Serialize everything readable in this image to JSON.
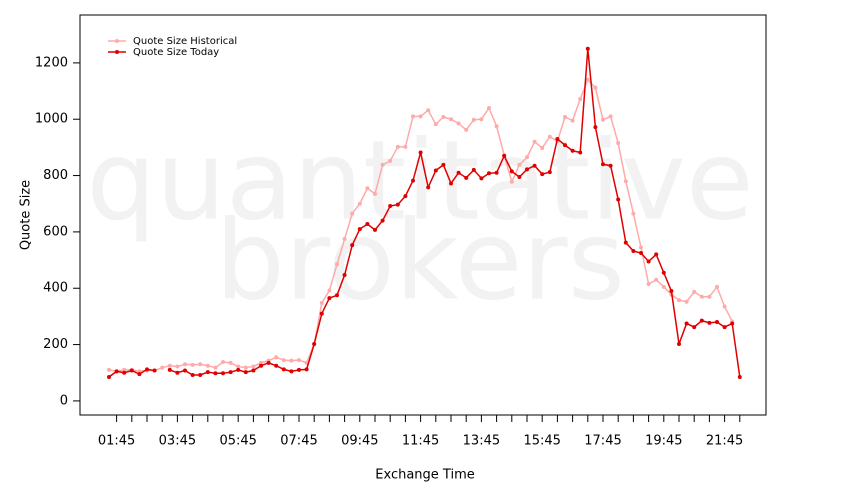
{
  "chart_data": {
    "type": "line",
    "watermark": [
      "quantitative",
      "brokers"
    ],
    "x_label": "Exchange Time",
    "y_label": "Quote Size",
    "categories": [
      null,
      "01:45",
      null,
      null,
      null,
      null,
      null,
      null,
      null,
      "03:45",
      null,
      null,
      null,
      null,
      null,
      null,
      null,
      "05:45",
      null,
      null,
      null,
      null,
      null,
      null,
      null,
      "07:45",
      null,
      null,
      null,
      null,
      null,
      null,
      null,
      "09:45",
      null,
      null,
      null,
      null,
      null,
      null,
      null,
      "11:45",
      null,
      null,
      null,
      null,
      null,
      null,
      null,
      "13:45",
      null,
      null,
      null,
      null,
      null,
      null,
      null,
      "15:45",
      null,
      null,
      null,
      null,
      null,
      null,
      null,
      "17:45",
      null,
      null,
      null,
      null,
      null,
      null,
      null,
      "19:45",
      null,
      null,
      null,
      null,
      null,
      null,
      null,
      "21:45",
      null,
      null
    ],
    "series": [
      {
        "name": "Quote Size Historical",
        "color": "#ffaaaa",
        "values": [
          110,
          105,
          110,
          110,
          105,
          108,
          108,
          118,
          125,
          122,
          130,
          128,
          130,
          125,
          118,
          138,
          135,
          122,
          118,
          122,
          135,
          143,
          155,
          145,
          143,
          145,
          135,
          202,
          348,
          392,
          485,
          575,
          665,
          700,
          755,
          735,
          838,
          852,
          902,
          902,
          1010,
          1010,
          1032,
          982,
          1008,
          1000,
          985,
          962,
          998,
          1000,
          1040,
          975,
          872,
          778,
          838,
          865,
          920,
          898,
          938,
          922,
          1008,
          995,
          1072,
          1140,
          1112,
          998,
          1010,
          915,
          780,
          665,
          545,
          415,
          430,
          405,
          377,
          358,
          352,
          387,
          370,
          370,
          405,
          335,
          282,
          null
        ]
      },
      {
        "name": "Quote Size Today",
        "color": "#e00000",
        "values": [
          85,
          105,
          100,
          108,
          95,
          112,
          108,
          null,
          110,
          100,
          108,
          92,
          92,
          102,
          98,
          98,
          102,
          110,
          102,
          108,
          125,
          135,
          125,
          112,
          105,
          110,
          112,
          202,
          310,
          365,
          375,
          447,
          553,
          610,
          628,
          607,
          640,
          692,
          697,
          727,
          782,
          882,
          758,
          818,
          838,
          772,
          810,
          792,
          820,
          790,
          808,
          810,
          870,
          815,
          795,
          822,
          835,
          805,
          812,
          930,
          908,
          888,
          882,
          1250,
          972,
          840,
          835,
          715,
          562,
          532,
          525,
          495,
          520,
          455,
          390,
          202,
          275,
          262,
          285,
          277,
          280,
          262,
          275,
          85
        ]
      }
    ],
    "ylim": [
      -50,
      1370
    ],
    "yticks": [
      0,
      200,
      400,
      600,
      800,
      1000,
      1200
    ],
    "legend": "top-left"
  }
}
